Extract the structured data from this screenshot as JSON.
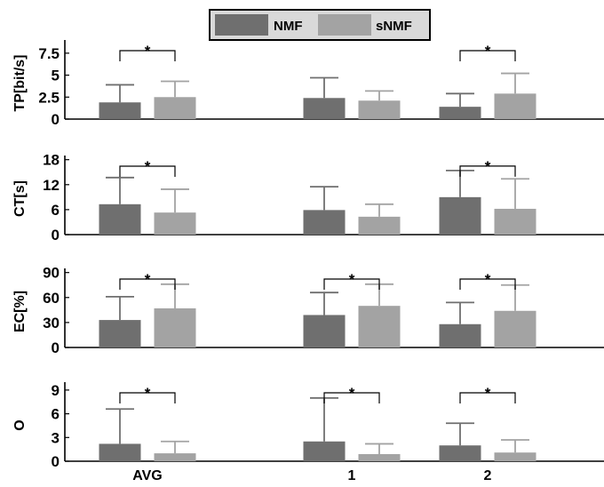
{
  "legend": {
    "items": [
      {
        "label": "NMF",
        "color": "#6f6f6f"
      },
      {
        "label": "sNMF",
        "color": "#a3a3a3"
      }
    ]
  },
  "significance_marker": "*",
  "chart_data": [
    {
      "type": "bar",
      "ylabel": "TP[bit/s]",
      "ylim": [
        0,
        9
      ],
      "yticks": [
        0,
        2.5,
        5,
        7.5
      ],
      "categories": [
        "AVG",
        "1",
        "2"
      ],
      "series": [
        {
          "name": "NMF",
          "values": [
            1.9,
            2.4,
            1.4
          ],
          "err_up": [
            3.9,
            4.7,
            2.9
          ]
        },
        {
          "name": "sNMF",
          "values": [
            2.5,
            2.1,
            2.9
          ],
          "err_up": [
            4.3,
            3.2,
            5.2
          ]
        }
      ],
      "significant": [
        0,
        2
      ]
    },
    {
      "type": "bar",
      "ylabel": "CT[s]",
      "ylim": [
        0,
        19
      ],
      "yticks": [
        0,
        6,
        12,
        18
      ],
      "categories": [
        "AVG",
        "1",
        "2"
      ],
      "series": [
        {
          "name": "NMF",
          "values": [
            7.3,
            5.9,
            9.0
          ],
          "err_up": [
            13.7,
            11.5,
            15.4
          ]
        },
        {
          "name": "sNMF",
          "values": [
            5.3,
            4.3,
            6.2
          ],
          "err_up": [
            10.9,
            7.3,
            13.4
          ]
        }
      ],
      "significant": [
        0,
        2
      ]
    },
    {
      "type": "bar",
      "ylabel": "EC[%]",
      "ylim": [
        0,
        95
      ],
      "yticks": [
        0,
        30,
        60,
        90
      ],
      "categories": [
        "AVG",
        "1",
        "2"
      ],
      "series": [
        {
          "name": "NMF",
          "values": [
            33,
            39,
            28
          ],
          "err_up": [
            61,
            66,
            54
          ]
        },
        {
          "name": "sNMF",
          "values": [
            47,
            50,
            44
          ],
          "err_up": [
            76,
            76,
            75
          ]
        }
      ],
      "significant": [
        0,
        1,
        2
      ]
    },
    {
      "type": "bar",
      "ylabel": "O",
      "ylim": [
        0,
        10
      ],
      "yticks": [
        0,
        3,
        6,
        9
      ],
      "categories": [
        "AVG",
        "1",
        "2"
      ],
      "series": [
        {
          "name": "NMF",
          "values": [
            2.2,
            2.5,
            2.0
          ],
          "err_up": [
            6.6,
            8.0,
            4.8
          ]
        },
        {
          "name": "sNMF",
          "values": [
            1.0,
            0.9,
            1.1
          ],
          "err_up": [
            2.5,
            2.2,
            2.7
          ]
        }
      ],
      "significant": [
        0,
        1,
        2
      ]
    }
  ]
}
